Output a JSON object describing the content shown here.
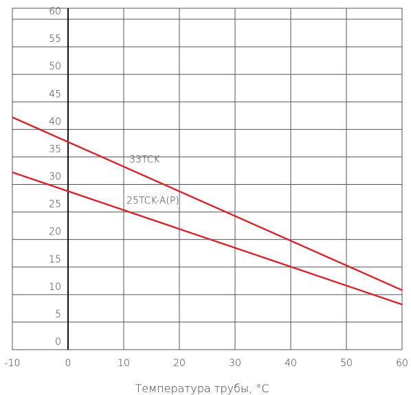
{
  "chart_data": {
    "type": "line",
    "title": "",
    "xlabel": "Температура трубы, °C",
    "ylabel": "",
    "xlim": [
      -10,
      60
    ],
    "ylim": [
      0,
      62
    ],
    "x_ticks": [
      -10,
      0,
      10,
      20,
      30,
      40,
      50,
      60
    ],
    "y_ticks": [
      0,
      5,
      10,
      15,
      20,
      25,
      30,
      35,
      40,
      45,
      50,
      55,
      60
    ],
    "grid": true,
    "colors": {
      "series": "#d9232a",
      "grid": "#555555",
      "axis": "#111111"
    },
    "series": [
      {
        "name": "33TCK",
        "x": [
          -10,
          60
        ],
        "y": [
          42.2,
          10.8
        ],
        "label_at": [
          11,
          34
        ]
      },
      {
        "name": "25TCK-A(P)",
        "x": [
          -10,
          60
        ],
        "y": [
          32.2,
          8.2
        ],
        "label_at": [
          10.5,
          26.5
        ]
      }
    ]
  }
}
